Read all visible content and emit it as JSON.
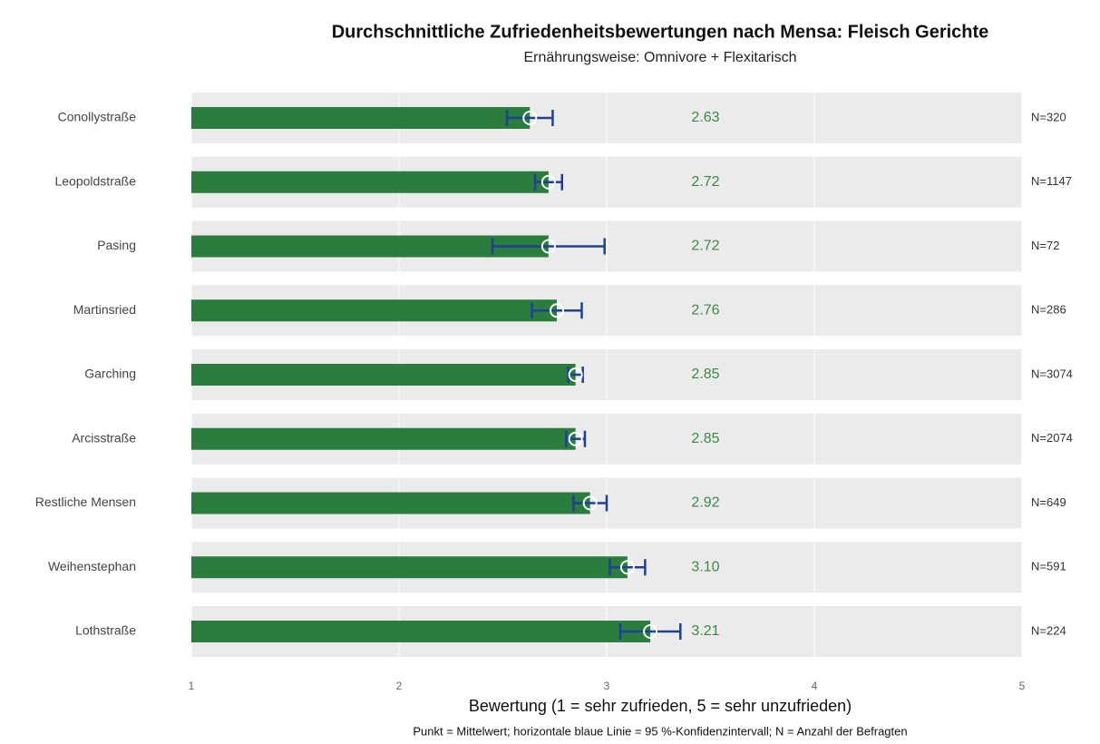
{
  "chart_data": {
    "type": "bar",
    "orientation": "horizontal",
    "title": "Durchschnittliche Zufriedenheitsbewertungen nach Mensa: Fleisch Gerichte",
    "subtitle": "Ernährungsweise: Omnivore + Flexitarisch",
    "xlabel": "Bewertung (1 = sehr zufrieden, 5 = sehr unzufrieden)",
    "caption": "Punkt = Mittelwert; horizontale blaue Linie = 95 %-Konfidenzintervall; N = Anzahl der Befragten",
    "categories": [
      "Conollystraße",
      "Leopoldstraße",
      "Pasing",
      "Martinsried",
      "Garching",
      "Arcisstraße",
      "Restliche Mensen",
      "Weihenstephan",
      "Lothstraße"
    ],
    "values": [
      2.63,
      2.72,
      2.72,
      2.76,
      2.85,
      2.85,
      2.92,
      3.1,
      3.21
    ],
    "value_labels": [
      "2.63",
      "2.72",
      "2.72",
      "2.76",
      "2.85",
      "2.85",
      "2.92",
      "3.10",
      "3.21"
    ],
    "errors": [
      0.11,
      0.065,
      0.27,
      0.12,
      0.035,
      0.045,
      0.08,
      0.085,
      0.145
    ],
    "n_labels": [
      "N=320",
      "N=1147",
      "N=72",
      "N=286",
      "N=3074",
      "N=2074",
      "N=649",
      "N=591",
      "N=224"
    ],
    "color": "#2a7d3c",
    "error_color": "#1f3f99",
    "label_color": "#3a8a45",
    "xlim": [
      1,
      5
    ],
    "xticks": [
      1,
      2,
      3,
      4,
      5
    ],
    "grid": true
  }
}
